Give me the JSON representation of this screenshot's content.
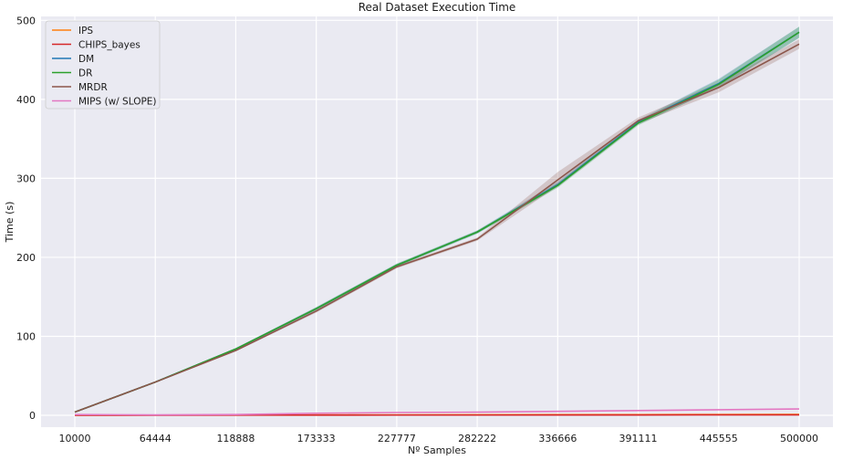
{
  "chart_data": {
    "type": "line",
    "title": "Real Dataset Execution Time",
    "xlabel": "Nº Samples",
    "ylabel": "Time (s)",
    "categories": [
      "10000",
      "64444",
      "118888",
      "173333",
      "227777",
      "282222",
      "336666",
      "391111",
      "445555",
      "500000"
    ],
    "x": [
      10000,
      64444,
      118888,
      173333,
      227777,
      282222,
      336666,
      391111,
      445555,
      500000
    ],
    "ylim": [
      -15,
      505
    ],
    "yticks": [
      0,
      100,
      200,
      300,
      400,
      500
    ],
    "grid": true,
    "legend_position": "top-left",
    "series": [
      {
        "name": "IPS",
        "color": "#ff7f0e",
        "values": [
          0.2,
          0.3,
          0.4,
          0.5,
          0.6,
          0.7,
          0.8,
          0.9,
          1.0,
          1.1
        ]
      },
      {
        "name": "CHIPS_bayes",
        "color": "#d62728",
        "values": [
          0.1,
          0.1,
          0.2,
          0.2,
          0.3,
          0.3,
          0.4,
          0.4,
          0.5,
          0.5
        ]
      },
      {
        "name": "DM",
        "color": "#1f77b4",
        "values": [
          4,
          42,
          84,
          135,
          190,
          232,
          292,
          371,
          420,
          485
        ],
        "band": [
          [
            3.8,
            4.2
          ],
          [
            41.5,
            42.5
          ],
          [
            83,
            85
          ],
          [
            133,
            137
          ],
          [
            188,
            192
          ],
          [
            230,
            234
          ],
          [
            289,
            296
          ],
          [
            368,
            374
          ],
          [
            414,
            426
          ],
          [
            478,
            492
          ]
        ]
      },
      {
        "name": "DR",
        "color": "#2ca02c",
        "values": [
          4,
          42,
          84,
          135,
          190,
          232,
          291,
          370,
          419,
          485
        ],
        "band": [
          [
            3.8,
            4.2
          ],
          [
            41.5,
            42.5
          ],
          [
            83,
            85
          ],
          [
            133,
            137
          ],
          [
            188,
            192
          ],
          [
            230,
            234
          ],
          [
            288,
            294
          ],
          [
            367,
            373
          ],
          [
            415,
            425
          ],
          [
            478,
            492
          ]
        ]
      },
      {
        "name": "MRDR",
        "color": "#8c564b",
        "values": [
          4,
          42,
          82,
          132,
          188,
          223,
          298,
          373,
          415,
          470
        ],
        "band": [
          [
            3.8,
            4.2
          ],
          [
            41.5,
            42.5
          ],
          [
            81,
            83
          ],
          [
            130,
            134
          ],
          [
            186,
            190
          ],
          [
            221,
            225
          ],
          [
            290,
            308
          ],
          [
            369,
            377
          ],
          [
            409,
            421
          ],
          [
            464,
            476
          ]
        ]
      },
      {
        "name": "MIPS (w/ SLOPE)",
        "color": "#e377c2",
        "values": [
          1.0,
          0.5,
          1.0,
          2.5,
          3.5,
          4.0,
          5.0,
          6.0,
          7.0,
          8.0
        ]
      }
    ]
  }
}
